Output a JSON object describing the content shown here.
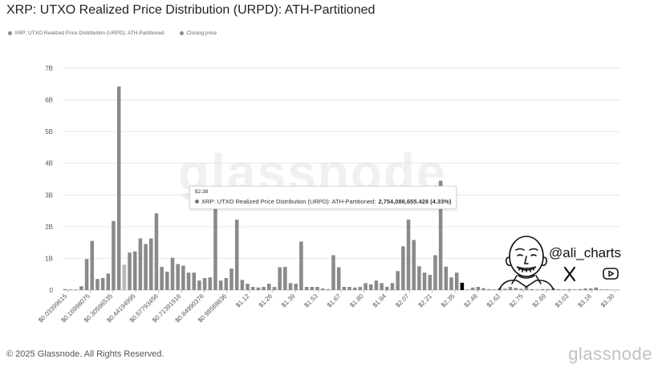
{
  "title": "XRP: UTXO Realized Price Distribution (URPD): ATH-Partitioned",
  "legend": [
    {
      "label": "XRP: UTXO Realized Price Distribution (URPD): ATH-Partitioned",
      "color": "#8a8a8a"
    },
    {
      "label": "Closing price",
      "color": "#8a8a8a"
    }
  ],
  "watermark": "glassnode",
  "copyright": "© 2025 Glassnode. All Rights Reserved.",
  "brand": "glassnode",
  "tooltip": {
    "price": "$2.38",
    "series": "XRP: UTXO Realized Price Distribution (URPD): ATH-Partitioned:",
    "value": "2,754,088,655.428 (4.33%)"
  },
  "author": {
    "handle": "@ali_charts",
    "x_icon": "x-logo-icon",
    "youtube_icon": "youtube-icon"
  },
  "colors": {
    "bar": "#8a8a8a",
    "bar_light": "#b8b8b8",
    "highlight": "#000000",
    "grid": "#e6e6e6"
  },
  "chart_data": {
    "type": "bar",
    "title": "XRP: UTXO Realized Price Distribution (URPD): ATH-Partitioned",
    "y_ticks": [
      "0",
      "1B",
      "2B",
      "3B",
      "4B",
      "5B",
      "6B",
      "7B"
    ],
    "ylim": [
      0,
      7
    ],
    "y_unit": "billion",
    "x_ticks": [
      "$0.03399615",
      "$0.16998075",
      "$0.30596535",
      "$0.44194995",
      "$0.57793456",
      "$0.71391916",
      "$0.84990376",
      "$0.98588836",
      "$1.12",
      "$1.26",
      "$1.39",
      "$1.53",
      "$1.67",
      "$1.80",
      "$1.94",
      "$2.07",
      "$2.21",
      "$2.35",
      "$2.48",
      "$2.62",
      "$2.75",
      "$2.89",
      "$3.03",
      "$3.16",
      "$3.30"
    ],
    "bars": [
      0.03,
      0.02,
      0.02,
      0.12,
      0.98,
      1.55,
      0.35,
      0.38,
      0.52,
      2.18,
      6.42,
      0.8,
      1.18,
      1.22,
      1.63,
      1.45,
      1.63,
      2.42,
      0.73,
      0.58,
      1.02,
      0.82,
      0.77,
      0.55,
      0.55,
      0.3,
      0.38,
      0.4,
      3.24,
      0.3,
      0.38,
      0.68,
      2.22,
      0.32,
      0.2,
      0.1,
      0.08,
      0.1,
      0.2,
      0.1,
      0.72,
      0.73,
      0.22,
      0.2,
      1.53,
      0.1,
      0.1,
      0.1,
      0.05,
      0.03,
      1.1,
      0.72,
      0.1,
      0.1,
      0.08,
      0.1,
      0.22,
      0.18,
      0.3,
      0.22,
      0.1,
      0.22,
      0.6,
      1.38,
      2.22,
      1.58,
      0.75,
      0.55,
      0.48,
      1.1,
      3.45,
      0.74,
      0.4,
      0.55,
      0.23,
      0.02,
      0.08,
      0.1,
      0.06,
      0.03,
      0.02,
      0.06,
      0.04,
      0.1,
      0.07,
      0.04,
      0.1,
      0.03,
      0.02,
      0.03,
      0.03,
      0.06,
      0.03,
      0.02,
      0.03,
      0.02,
      0.03,
      0.05,
      0.05,
      0.08,
      0.02,
      0.02,
      0.01,
      0.01
    ],
    "closing_price_bar": 74,
    "light_bars": [
      11
    ],
    "grid": true
  }
}
